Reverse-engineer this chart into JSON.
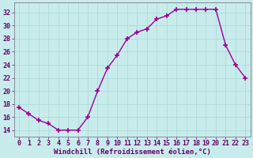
{
  "x": [
    0,
    1,
    2,
    3,
    4,
    5,
    6,
    7,
    8,
    9,
    10,
    11,
    12,
    13,
    14,
    15,
    16,
    17,
    18,
    19,
    20,
    21,
    22,
    23
  ],
  "y": [
    17.5,
    16.5,
    15.5,
    15.0,
    14.0,
    14.0,
    14.0,
    16.0,
    20.0,
    23.5,
    25.5,
    28.0,
    29.0,
    29.5,
    31.0,
    31.5,
    32.5,
    32.5,
    32.5,
    32.5,
    32.5,
    27.0,
    24.0,
    22.0
  ],
  "line_color": "#990099",
  "marker": "+",
  "markersize": 4,
  "linewidth": 1.0,
  "bg_color": "#c8ecec",
  "grid_color": "#b0d8d8",
  "xlabel": "Windchill (Refroidissement éolien,°C)",
  "xlabel_fontsize": 6.5,
  "ylabel_ticks": [
    14,
    16,
    18,
    20,
    22,
    24,
    26,
    28,
    30,
    32
  ],
  "xlim": [
    -0.5,
    23.5
  ],
  "ylim": [
    13.0,
    33.5
  ],
  "xtick_labels": [
    "0",
    "1",
    "2",
    "3",
    "4",
    "5",
    "6",
    "7",
    "8",
    "9",
    "10",
    "11",
    "12",
    "13",
    "14",
    "15",
    "16",
    "17",
    "18",
    "19",
    "20",
    "21",
    "22",
    "23"
  ],
  "tick_fontsize": 6.0,
  "title": ""
}
